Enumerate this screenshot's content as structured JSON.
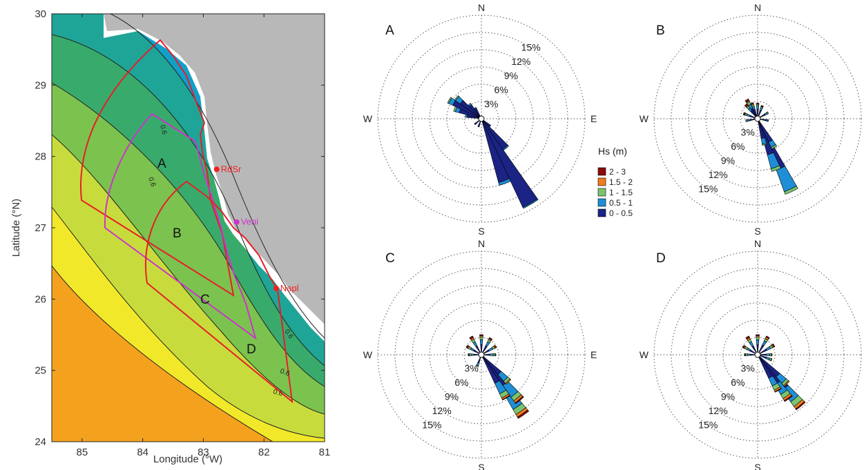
{
  "map": {
    "xlabel": "Longitude (°W)",
    "ylabel": "Latitude (°N)",
    "x_ticks": [
      "85",
      "84",
      "83",
      "82",
      "81"
    ],
    "y_ticks": [
      "30",
      "29",
      "28",
      "27",
      "26",
      "25",
      "24"
    ],
    "regions": [
      {
        "label": "A"
      },
      {
        "label": "B"
      },
      {
        "label": "C"
      },
      {
        "label": "D"
      }
    ],
    "cities": [
      {
        "name": "RdSr",
        "lon": 82.78,
        "lat": 27.82,
        "color": "#ee2222"
      },
      {
        "name": "Veni",
        "lon": 82.45,
        "lat": 27.08,
        "color": "#cc33cc"
      },
      {
        "name": "Napl",
        "lon": 81.8,
        "lat": 26.15,
        "color": "#ee2222"
      }
    ],
    "contour_labels": [
      "0.6",
      "0.6",
      "0.6",
      "0.6",
      "0.6"
    ]
  },
  "chart_data": [
    {
      "type": "polar-bar",
      "panel": "A",
      "directions": [
        "N",
        "E",
        "S",
        "W"
      ],
      "ring_labels": [
        "3%",
        "6%",
        "9%",
        "12%",
        "15%"
      ],
      "max_percent": 18,
      "legend_title": "Hs (m)",
      "legend": [
        {
          "label": "2 - 3",
          "color": "#8b0a0a"
        },
        {
          "label": "1.5 - 2",
          "color": "#f07c1e"
        },
        {
          "label": "1 - 1.5",
          "color": "#7ac46e"
        },
        {
          "label": "0.5 - 1",
          "color": "#1f8ed6"
        },
        {
          "label": "0 - 0.5",
          "color": "#1b2484"
        }
      ],
      "bins": [
        {
          "dir": 150,
          "pct": [
            0,
            0,
            0,
            0.2,
            16.5
          ]
        },
        {
          "dir": 160,
          "pct": [
            0,
            0,
            0,
            0.5,
            11
          ]
        },
        {
          "dir": 140,
          "pct": [
            0,
            0,
            0,
            0.2,
            6
          ]
        },
        {
          "dir": 300,
          "pct": [
            0,
            0,
            0.2,
            0.8,
            5
          ]
        },
        {
          "dir": 310,
          "pct": [
            0,
            0,
            0.2,
            1,
            4
          ]
        },
        {
          "dir": 290,
          "pct": [
            0,
            0,
            0.3,
            0.7,
            3.5
          ]
        },
        {
          "dir": 320,
          "pct": [
            0,
            0,
            0,
            0.3,
            2.5
          ]
        },
        {
          "dir": 280,
          "pct": [
            0,
            0,
            0,
            0.3,
            2
          ]
        },
        {
          "dir": 330,
          "pct": [
            0,
            0,
            0,
            0.2,
            1.5
          ]
        },
        {
          "dir": 130,
          "pct": [
            0,
            0,
            0,
            0,
            1.5
          ]
        },
        {
          "dir": 200,
          "pct": [
            0,
            0,
            0,
            0,
            1
          ]
        },
        {
          "dir": 230,
          "pct": [
            0,
            0,
            0,
            0,
            1
          ]
        }
      ]
    },
    {
      "type": "polar-bar",
      "panel": "B",
      "directions": [
        "N",
        "E",
        "S",
        "W"
      ],
      "ring_labels": [
        "3%",
        "6%",
        "9%",
        "12%",
        "15%"
      ],
      "max_percent": 18,
      "bins": [
        {
          "dir": 155,
          "pct": [
            0,
            0,
            0.5,
            4,
            9
          ]
        },
        {
          "dir": 160,
          "pct": [
            0,
            0,
            0.5,
            2.5,
            6
          ]
        },
        {
          "dir": 150,
          "pct": [
            0,
            0,
            0.3,
            1,
            4
          ]
        },
        {
          "dir": 165,
          "pct": [
            0,
            0,
            0.2,
            1,
            3
          ]
        },
        {
          "dir": 330,
          "pct": [
            0.3,
            0.2,
            0.5,
            0.8,
            1.5
          ]
        },
        {
          "dir": 320,
          "pct": [
            0.3,
            0.2,
            0.4,
            0.6,
            1.2
          ]
        },
        {
          "dir": 340,
          "pct": [
            0.2,
            0.2,
            0.3,
            0.5,
            1.2
          ]
        },
        {
          "dir": 0,
          "pct": [
            0.1,
            0.1,
            0.3,
            0.5,
            1.2
          ]
        },
        {
          "dir": 20,
          "pct": [
            0.1,
            0.1,
            0.2,
            0.5,
            1
          ]
        },
        {
          "dir": 60,
          "pct": [
            0,
            0,
            0.2,
            0.4,
            1
          ]
        },
        {
          "dir": 100,
          "pct": [
            0,
            0,
            0.1,
            0.3,
            1
          ]
        },
        {
          "dir": 260,
          "pct": [
            0,
            0,
            0.2,
            0.4,
            1
          ]
        },
        {
          "dir": 290,
          "pct": [
            0.2,
            0.1,
            0.3,
            0.5,
            1
          ]
        }
      ]
    },
    {
      "type": "polar-bar",
      "panel": "C",
      "directions": [
        "N",
        "E",
        "S",
        "W"
      ],
      "ring_labels": [
        "3%",
        "6%",
        "9%",
        "12%",
        "15%"
      ],
      "max_percent": 18,
      "bins": [
        {
          "dir": 145,
          "pct": [
            0.3,
            0.5,
            1,
            3,
            7.5
          ]
        },
        {
          "dir": 140,
          "pct": [
            0.2,
            0.4,
            0.8,
            2.5,
            6
          ]
        },
        {
          "dir": 150,
          "pct": [
            0.1,
            0.3,
            0.8,
            2,
            5
          ]
        },
        {
          "dir": 135,
          "pct": [
            0,
            0.2,
            0.5,
            1.5,
            4
          ]
        },
        {
          "dir": 330,
          "pct": [
            0.3,
            0.3,
            0.5,
            0.8,
            1.2
          ]
        },
        {
          "dir": 0,
          "pct": [
            0.2,
            0.2,
            0.5,
            0.8,
            1.3
          ]
        },
        {
          "dir": 30,
          "pct": [
            0.2,
            0.2,
            0.4,
            0.8,
            1.2
          ]
        },
        {
          "dir": 60,
          "pct": [
            0.1,
            0.2,
            0.4,
            0.7,
            1
          ]
        },
        {
          "dir": 90,
          "pct": [
            0,
            0.1,
            0.3,
            0.6,
            1
          ]
        },
        {
          "dir": 300,
          "pct": [
            0.2,
            0.2,
            0.4,
            0.6,
            1
          ]
        },
        {
          "dir": 270,
          "pct": [
            0.1,
            0.1,
            0.3,
            0.5,
            0.8
          ]
        },
        {
          "dir": 200,
          "pct": [
            0,
            0,
            0.2,
            0.5,
            1
          ]
        }
      ]
    },
    {
      "type": "polar-bar",
      "panel": "D",
      "directions": [
        "N",
        "E",
        "S",
        "W"
      ],
      "ring_labels": [
        "3%",
        "6%",
        "9%",
        "12%",
        "15%"
      ],
      "max_percent": 18,
      "bins": [
        {
          "dir": 140,
          "pct": [
            0.2,
            0.5,
            1,
            2.5,
            7
          ]
        },
        {
          "dir": 145,
          "pct": [
            0.2,
            0.4,
            0.8,
            2,
            5.5
          ]
        },
        {
          "dir": 135,
          "pct": [
            0,
            0.2,
            0.5,
            1.5,
            4.5
          ]
        },
        {
          "dir": 150,
          "pct": [
            0.1,
            0.3,
            0.8,
            1.5,
            4
          ]
        },
        {
          "dir": 330,
          "pct": [
            0.3,
            0.3,
            0.5,
            0.8,
            1.2
          ]
        },
        {
          "dir": 0,
          "pct": [
            0.2,
            0.2,
            0.5,
            0.8,
            1.3
          ]
        },
        {
          "dir": 30,
          "pct": [
            0.2,
            0.3,
            0.4,
            0.8,
            1.4
          ]
        },
        {
          "dir": 60,
          "pct": [
            0.2,
            0.2,
            0.4,
            0.7,
            1.3
          ]
        },
        {
          "dir": 90,
          "pct": [
            0,
            0.1,
            0.3,
            0.6,
            1
          ]
        },
        {
          "dir": 300,
          "pct": [
            0.2,
            0.2,
            0.4,
            0.6,
            1
          ]
        },
        {
          "dir": 270,
          "pct": [
            0.1,
            0.1,
            0.3,
            0.5,
            0.8
          ]
        },
        {
          "dir": 110,
          "pct": [
            0,
            0.1,
            0.3,
            0.6,
            1.1
          ]
        }
      ]
    }
  ]
}
